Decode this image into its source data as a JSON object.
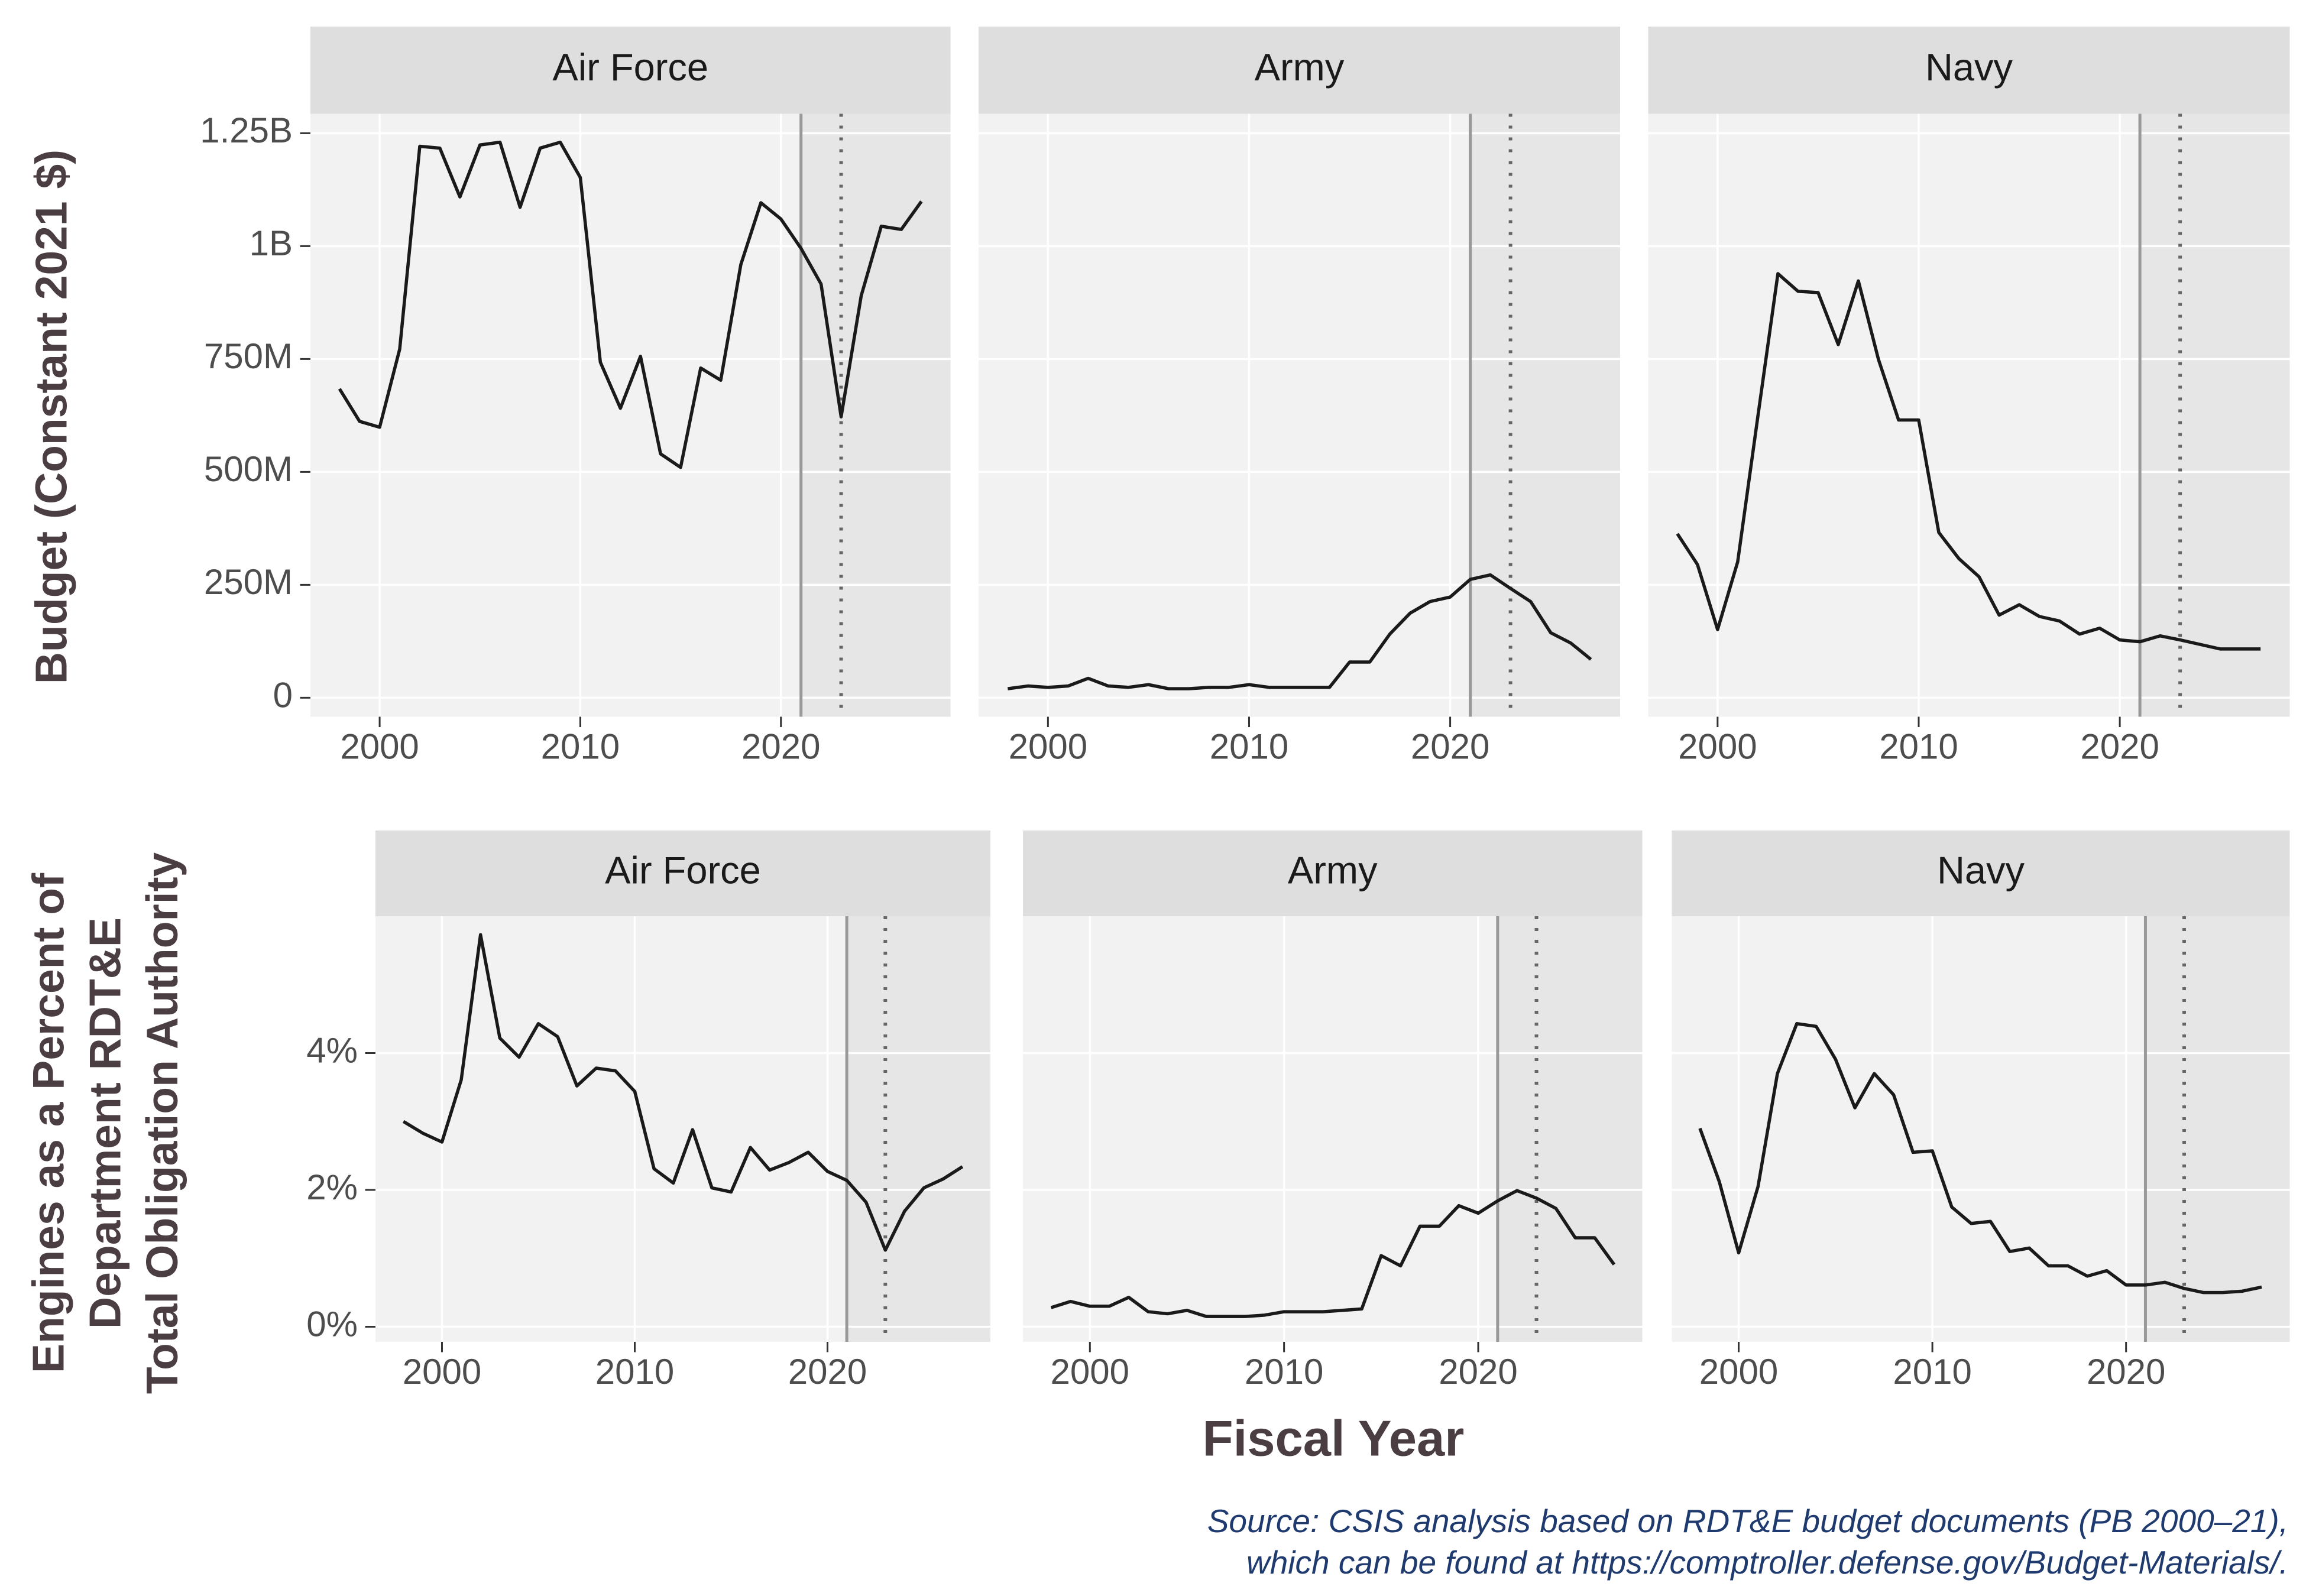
{
  "chart_data": [
    {
      "type": "line",
      "title": "Air Force",
      "ylabel": [
        "Budget (Constant 2021 $)"
      ],
      "x": [
        1998,
        1999,
        2000,
        2001,
        2002,
        2003,
        2004,
        2005,
        2006,
        2007,
        2008,
        2009,
        2010,
        2011,
        2012,
        2013,
        2014,
        2015,
        2016,
        2017,
        2018,
        2019,
        2020,
        2021,
        2022,
        2023,
        2024,
        2025,
        2026,
        2027
      ],
      "values": [
        684000000,
        612000000,
        599000000,
        772000000,
        1221000000,
        1217000000,
        1109000000,
        1224000000,
        1230000000,
        1086000000,
        1217000000,
        1230000000,
        1152000000,
        743000000,
        641000000,
        756000000,
        540000000,
        510000000,
        730000000,
        703000000,
        959000000,
        1096000000,
        1060000000,
        995000000,
        916000000,
        622000000,
        890000000,
        1044000000,
        1037000000,
        1099000000
      ],
      "color": "#1a1a1a",
      "xlim": [
        1996.55,
        2028.45
      ],
      "ylim": [
        -42000000,
        1293000000
      ],
      "xticks": [
        2000,
        2010,
        2020
      ],
      "yticks": [
        0,
        {
          "value": 250000000,
          "label": "250M"
        },
        {
          "value": 500000000,
          "label": "500M"
        },
        {
          "value": 750000000,
          "label": "750M"
        },
        {
          "value": 1000000000,
          "label": "1B"
        },
        {
          "value": 1250000000,
          "label": "1.25B"
        }
      ],
      "vlines": [
        {
          "x": 2021,
          "style": "solid"
        },
        {
          "x": 2023,
          "style": "dotted"
        }
      ],
      "shade_from": 2021,
      "grid": true
    },
    {
      "type": "line",
      "title": "Army",
      "x": [
        1998,
        1999,
        2000,
        2001,
        2002,
        2003,
        2004,
        2005,
        2006,
        2007,
        2008,
        2009,
        2010,
        2011,
        2012,
        2013,
        2014,
        2015,
        2016,
        2017,
        2018,
        2019,
        2020,
        2021,
        2022,
        2023,
        2024,
        2025,
        2026,
        2027
      ],
      "values": [
        20000000,
        26000000,
        23000000,
        26000000,
        43000000,
        26000000,
        23000000,
        29000000,
        20000000,
        20000000,
        23000000,
        23000000,
        29000000,
        23000000,
        23000000,
        23000000,
        23000000,
        79000000,
        79000000,
        141000000,
        187000000,
        213000000,
        223000000,
        262000000,
        272000000,
        242000000,
        213000000,
        144000000,
        121000000,
        85000000
      ],
      "color": "#1a1a1a",
      "xlim": [
        1996.55,
        2028.45
      ],
      "ylim": [
        -42000000,
        1293000000
      ],
      "xticks": [
        2000,
        2010,
        2020
      ],
      "yticks": [
        0,
        250000000,
        500000000,
        750000000,
        1000000000,
        1250000000
      ],
      "vlines": [
        {
          "x": 2021,
          "style": "solid"
        },
        {
          "x": 2023,
          "style": "dotted"
        }
      ],
      "shade_from": 2021,
      "grid": true
    },
    {
      "type": "line",
      "title": "Navy",
      "x": [
        1998,
        1999,
        2000,
        2001,
        2002,
        2003,
        2004,
        2005,
        2006,
        2007,
        2008,
        2009,
        2010,
        2011,
        2012,
        2013,
        2014,
        2015,
        2016,
        2017,
        2018,
        2019,
        2020,
        2021,
        2022,
        2023,
        2024,
        2025,
        2026,
        2027
      ],
      "values": [
        363000000,
        295000000,
        151000000,
        301000000,
        622000000,
        939000000,
        900000000,
        897000000,
        782000000,
        923000000,
        749000000,
        615000000,
        615000000,
        366000000,
        308000000,
        268000000,
        183000000,
        206000000,
        180000000,
        170000000,
        141000000,
        154000000,
        128000000,
        124000000,
        137000000,
        128000000,
        118000000,
        108000000,
        108000000,
        108000000
      ],
      "color": "#1a1a1a",
      "xlim": [
        1996.55,
        2028.45
      ],
      "ylim": [
        -42000000,
        1293000000
      ],
      "xticks": [
        2000,
        2010,
        2020
      ],
      "yticks": [
        0,
        250000000,
        500000000,
        750000000,
        1000000000,
        1250000000
      ],
      "vlines": [
        {
          "x": 2021,
          "style": "solid"
        },
        {
          "x": 2023,
          "style": "dotted"
        }
      ],
      "shade_from": 2021,
      "grid": true
    },
    {
      "type": "line",
      "title": "Air Force",
      "ylabel": [
        "Engines as a Percent of",
        "Department RDT&E",
        "Total Obligation Authority"
      ],
      "x": [
        1998,
        1999,
        2000,
        2001,
        2002,
        2003,
        2004,
        2005,
        2006,
        2007,
        2008,
        2009,
        2010,
        2011,
        2012,
        2013,
        2014,
        2015,
        2016,
        2017,
        2018,
        2019,
        2020,
        2021,
        2022,
        2023,
        2024,
        2025,
        2026,
        2027
      ],
      "values": [
        3.0,
        2.83,
        2.7,
        3.61,
        5.73,
        4.22,
        3.94,
        4.43,
        4.24,
        3.52,
        3.78,
        3.74,
        3.44,
        2.31,
        2.1,
        2.88,
        2.03,
        1.97,
        2.62,
        2.29,
        2.4,
        2.55,
        2.27,
        2.14,
        1.82,
        1.12,
        1.69,
        2.03,
        2.16,
        2.34
      ],
      "color": "#1a1a1a",
      "xlim": [
        1996.55,
        2028.45
      ],
      "ylim": [
        -0.22,
        6.0
      ],
      "xticks": [
        2000,
        2010,
        2020
      ],
      "yticks": [
        {
          "value": 0,
          "label": "0%"
        },
        {
          "value": 2,
          "label": "2%"
        },
        {
          "value": 4,
          "label": "4%"
        }
      ],
      "vlines": [
        {
          "x": 2021,
          "style": "solid"
        },
        {
          "x": 2023,
          "style": "dotted"
        }
      ],
      "shade_from": 2021,
      "grid": true
    },
    {
      "type": "line",
      "title": "Army",
      "x": [
        1998,
        1999,
        2000,
        2001,
        2002,
        2003,
        2004,
        2005,
        2006,
        2007,
        2008,
        2009,
        2010,
        2011,
        2012,
        2013,
        2014,
        2015,
        2016,
        2017,
        2018,
        2019,
        2020,
        2021,
        2022,
        2023,
        2024,
        2025,
        2026,
        2027
      ],
      "values": [
        0.28,
        0.37,
        0.3,
        0.3,
        0.43,
        0.22,
        0.19,
        0.24,
        0.15,
        0.15,
        0.15,
        0.17,
        0.22,
        0.22,
        0.22,
        0.24,
        0.26,
        1.04,
        0.89,
        1.47,
        1.47,
        1.77,
        1.66,
        1.84,
        1.99,
        1.88,
        1.73,
        1.3,
        1.3,
        0.91
      ],
      "color": "#1a1a1a",
      "xlim": [
        1996.55,
        2028.45
      ],
      "ylim": [
        -0.22,
        6.0
      ],
      "xticks": [
        2000,
        2010,
        2020
      ],
      "yticks": [
        0,
        2,
        4
      ],
      "vlines": [
        {
          "x": 2021,
          "style": "solid"
        },
        {
          "x": 2023,
          "style": "dotted"
        }
      ],
      "shade_from": 2021,
      "grid": true
    },
    {
      "type": "line",
      "title": "Navy",
      "x": [
        1998,
        1999,
        2000,
        2001,
        2002,
        2003,
        2004,
        2005,
        2006,
        2007,
        2008,
        2009,
        2010,
        2011,
        2012,
        2013,
        2014,
        2015,
        2016,
        2017,
        2018,
        2019,
        2020,
        2021,
        2022,
        2023,
        2024,
        2025,
        2026,
        2027
      ],
      "values": [
        2.9,
        2.12,
        1.08,
        2.05,
        3.7,
        4.43,
        4.39,
        3.91,
        3.2,
        3.7,
        3.39,
        2.55,
        2.57,
        1.75,
        1.51,
        1.54,
        1.1,
        1.15,
        0.89,
        0.89,
        0.74,
        0.82,
        0.61,
        0.61,
        0.65,
        0.56,
        0.5,
        0.5,
        0.52,
        0.58
      ],
      "color": "#1a1a1a",
      "xlim": [
        1996.55,
        2028.45
      ],
      "ylim": [
        -0.22,
        6.0
      ],
      "xticks": [
        2000,
        2010,
        2020
      ],
      "yticks": [
        0,
        2,
        4
      ],
      "vlines": [
        {
          "x": 2021,
          "style": "solid"
        },
        {
          "x": 2023,
          "style": "dotted"
        }
      ],
      "shade_from": 2021,
      "grid": true
    }
  ],
  "xlabel": "Fiscal Year",
  "source": [
    "Source: CSIS analysis based on RDT&E budget documents (PB 2000–21),",
    "which can be found at https://comptroller.defense.gov/Budget-Materials/."
  ]
}
